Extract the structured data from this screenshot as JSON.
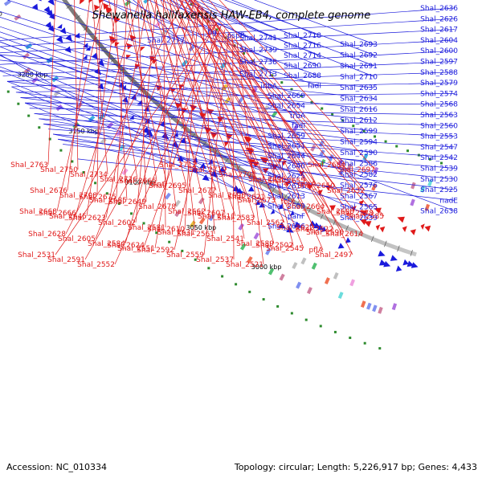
{
  "title": "Shewanella halifaxensis HAW-EB4, complete genome",
  "footer": {
    "accession": "Accession: NC_010334",
    "summary": "Topology: circular; Length: 5,226,917 bp; Genes: 4,433"
  },
  "colors": {
    "forward": "#1a1adc",
    "reverse": "#e01a1a",
    "backbone": "#8a8a8a",
    "tick": "#2e8b2e"
  },
  "kbp_marks": [
    {
      "label": "3400 kbp",
      "deg": -73
    },
    {
      "label": "3350 kbp",
      "deg": -67.4
    },
    {
      "label": "3300 kbp",
      "deg": -61.8
    },
    {
      "label": "3250 kbp",
      "deg": -56.2
    },
    {
      "label": "3200 kbp",
      "deg": -50.6
    },
    {
      "label": "3150 kbp",
      "deg": -45
    },
    {
      "label": "3100 kbp",
      "deg": -39.4
    },
    {
      "label": "3050 kbp",
      "deg": -33.8
    },
    {
      "label": "3000 kbp",
      "deg": -28.2
    }
  ],
  "forward_labels": [
    {
      "text": "tig",
      "deg": -77
    },
    {
      "text": "Shal_2777",
      "deg": -76.5
    },
    {
      "text": "pspB",
      "deg": -76
    },
    {
      "text": "Shal_2741",
      "deg": -70.5
    },
    {
      "text": "Shal_2718",
      "deg": -70
    },
    {
      "text": "Shal_2693",
      "deg": -69.5
    },
    {
      "text": "Shal_2739",
      "deg": -69.5
    },
    {
      "text": "Shal_2716",
      "deg": -69
    },
    {
      "text": "Shal_2692",
      "deg": -68.5
    },
    {
      "text": "Shal_2738",
      "deg": -69
    },
    {
      "text": "Shal_2714",
      "deg": -68.5
    },
    {
      "text": "Shal_2691",
      "deg": -68
    },
    {
      "text": "Shal_2713",
      "deg": -68
    },
    {
      "text": "Shal_2690",
      "deg": -67.5
    },
    {
      "text": "Shal_2710",
      "deg": -67.5
    },
    {
      "text": "iribA",
      "deg": -67
    },
    {
      "text": "Shal_2688",
      "deg": -64
    },
    {
      "text": "fadI",
      "deg": -62
    },
    {
      "text": "Shal_2669",
      "deg": -60.5
    },
    {
      "text": "Shal_2654",
      "deg": -59
    },
    {
      "text": "truA",
      "deg": -58.5
    },
    {
      "text": "fadI",
      "deg": -57.5
    },
    {
      "text": "Shal_2659",
      "deg": -57
    },
    {
      "text": "Shal_2651",
      "deg": -56.5
    },
    {
      "text": "Shal_2644",
      "deg": -56
    },
    {
      "text": "Shal_2640",
      "deg": -55.5
    },
    {
      "text": "Shal_2625",
      "deg": -53
    },
    {
      "text": "Shal_2615",
      "deg": -52.5
    },
    {
      "text": "Shal_2613",
      "deg": -51.5
    },
    {
      "text": "Shal_2609",
      "deg": -51
    },
    {
      "text": "panF",
      "deg": -49.5
    },
    {
      "text": "Shal_2656",
      "deg": -55
    },
    {
      "text": "Shal_2635",
      "deg": -54
    },
    {
      "text": "Shal_2634",
      "deg": -53.5
    },
    {
      "text": "Shal_2616",
      "deg": -52.5
    },
    {
      "text": "Shal_2612",
      "deg": -51.5
    },
    {
      "text": "Shal_2599",
      "deg": -50.5
    },
    {
      "text": "Shal_2594",
      "deg": -50
    },
    {
      "text": "Shal_2590",
      "deg": -49.5
    },
    {
      "text": "Shal_2586",
      "deg": -48.5
    },
    {
      "text": "Shal_2582",
      "deg": -48
    },
    {
      "text": "Shal_2576",
      "deg": -47.5
    },
    {
      "text": "Shal_2567",
      "deg": -46.5
    },
    {
      "text": "Shal_2565",
      "deg": -46
    },
    {
      "text": "Shal_2639",
      "deg": -54.5
    },
    {
      "text": "Shal_2636",
      "deg": -55
    },
    {
      "text": "Shal_2626",
      "deg": -54.5
    },
    {
      "text": "Shal_2617",
      "deg": -54
    },
    {
      "text": "Shal_2604",
      "deg": -53
    },
    {
      "text": "Shal_2600",
      "deg": -52
    },
    {
      "text": "Shal_2597",
      "deg": -51.5
    },
    {
      "text": "Shal_2588",
      "deg": -51
    },
    {
      "text": "Shal_2579",
      "deg": -50.5
    },
    {
      "text": "Shal_2574",
      "deg": -50
    },
    {
      "text": "Shal_2568",
      "deg": -49.5
    },
    {
      "text": "Shal_2563",
      "deg": -49
    },
    {
      "text": "Shal_2560",
      "deg": -48.5
    },
    {
      "text": "Shal_2553",
      "deg": -48
    },
    {
      "text": "Shal_2547",
      "deg": -47.5
    },
    {
      "text": "Shal_2542",
      "deg": -47
    },
    {
      "text": "Shal_2539",
      "deg": -46.5
    },
    {
      "text": "Shal_2530",
      "deg": -46
    },
    {
      "text": "Shal_2525",
      "deg": -45.5
    },
    {
      "text": "nadE",
      "deg": -44
    },
    {
      "text": "Shal_2638",
      "deg": -56
    }
  ],
  "reverse_labels": [
    {
      "text": "Shal_2763",
      "deg": -70
    },
    {
      "text": "Shal_2750",
      "deg": -68.5
    },
    {
      "text": "Shal_2734",
      "deg": -67
    },
    {
      "text": "Shal_2726",
      "deg": -65.5
    },
    {
      "text": "dinG",
      "deg": -65
    },
    {
      "text": "Shal_2712",
      "deg": -64.5
    },
    {
      "text": "Shal_2719",
      "deg": -64
    },
    {
      "text": "Shal_2701",
      "deg": -63.5
    },
    {
      "text": "Shal_2696",
      "deg": -63
    },
    {
      "text": "avtA",
      "deg": -62.5
    },
    {
      "text": "Shal_2684",
      "deg": -62
    },
    {
      "text": "Shal_2697",
      "deg": -61.5
    },
    {
      "text": "Shal_2676",
      "deg": -61
    },
    {
      "text": "Shal_2708",
      "deg": -61.5
    },
    {
      "text": "Shal_2685",
      "deg": -60.5
    },
    {
      "text": "Shal_2665",
      "deg": -59.5
    },
    {
      "text": "Shal_2695",
      "deg": -60
    },
    {
      "text": "Shal_2677",
      "deg": -59.5
    },
    {
      "text": "Shal_2698",
      "deg": -59
    },
    {
      "text": "Shal_2673",
      "deg": -58.5
    },
    {
      "text": "Shal_2655",
      "deg": -58
    },
    {
      "text": "Shal_2650",
      "deg": -57.5
    },
    {
      "text": "Shal_2632",
      "deg": -57
    },
    {
      "text": "Shal_2668",
      "deg": -57.5
    },
    {
      "text": "Shal_2645",
      "deg": -56.5
    },
    {
      "text": "Shal_2675",
      "deg": -56
    },
    {
      "text": "Shal_2649",
      "deg": -55.5
    },
    {
      "text": "Shal_2678",
      "deg": -55
    },
    {
      "text": "Shal_2662",
      "deg": -54.5
    },
    {
      "text": "Shal_2611",
      "deg": -54
    },
    {
      "text": "Shal_2621",
      "deg": -53.5
    },
    {
      "text": "folX",
      "deg": -53
    },
    {
      "text": "Shal_2664",
      "deg": -53.5
    },
    {
      "text": "Shal_2608",
      "deg": -52.5
    },
    {
      "text": "Shal_2585",
      "deg": -52
    },
    {
      "text": "Shal_2666",
      "deg": -52.5
    },
    {
      "text": "Shal_2623",
      "deg": -52
    },
    {
      "text": "Shal_2602",
      "deg": -51.5
    },
    {
      "text": "Shal_2581",
      "deg": -51
    },
    {
      "text": "Shal_2631",
      "deg": -50.5
    },
    {
      "text": "Shal_2607",
      "deg": -50
    },
    {
      "text": "Shal_2583",
      "deg": -49.5
    },
    {
      "text": "Shal_2562",
      "deg": -49
    },
    {
      "text": "Shal_2622",
      "deg": -48.5
    },
    {
      "text": "Shal_2596",
      "deg": -48
    },
    {
      "text": "Shal_2578",
      "deg": -47.5
    },
    {
      "text": "Shal_2628",
      "deg": -47.5
    },
    {
      "text": "Shal_2605",
      "deg": -47
    },
    {
      "text": "Shal_2584",
      "deg": -46.5
    },
    {
      "text": "Shal_2551",
      "deg": -46
    },
    {
      "text": "Shal_2610",
      "deg": -46
    },
    {
      "text": "Shal_2561",
      "deg": -45.5
    },
    {
      "text": "Shal_2541",
      "deg": -45
    },
    {
      "text": "Shal_2589",
      "deg": -45
    },
    {
      "text": "Shal_2545",
      "deg": -44.5
    },
    {
      "text": "Shal_2522",
      "deg": -44
    },
    {
      "text": "Shal_2614",
      "deg": -44.5
    },
    {
      "text": "Shal_2531",
      "deg": -43.5
    },
    {
      "text": "Shal_2591",
      "deg": -43.5
    },
    {
      "text": "Shal_2552",
      "deg": -43
    },
    {
      "text": "Shal_2624",
      "deg": -43
    },
    {
      "text": "Shal_2592",
      "deg": -42.5
    },
    {
      "text": "Shal_2559",
      "deg": -42
    },
    {
      "text": "Shal_2537",
      "deg": -41.5
    },
    {
      "text": "Shal_2521",
      "deg": -41
    },
    {
      "text": "Shal_2502",
      "deg": -40.5
    },
    {
      "text": "pflA",
      "deg": -42
    },
    {
      "text": "Shal_2497",
      "deg": -40
    }
  ]
}
